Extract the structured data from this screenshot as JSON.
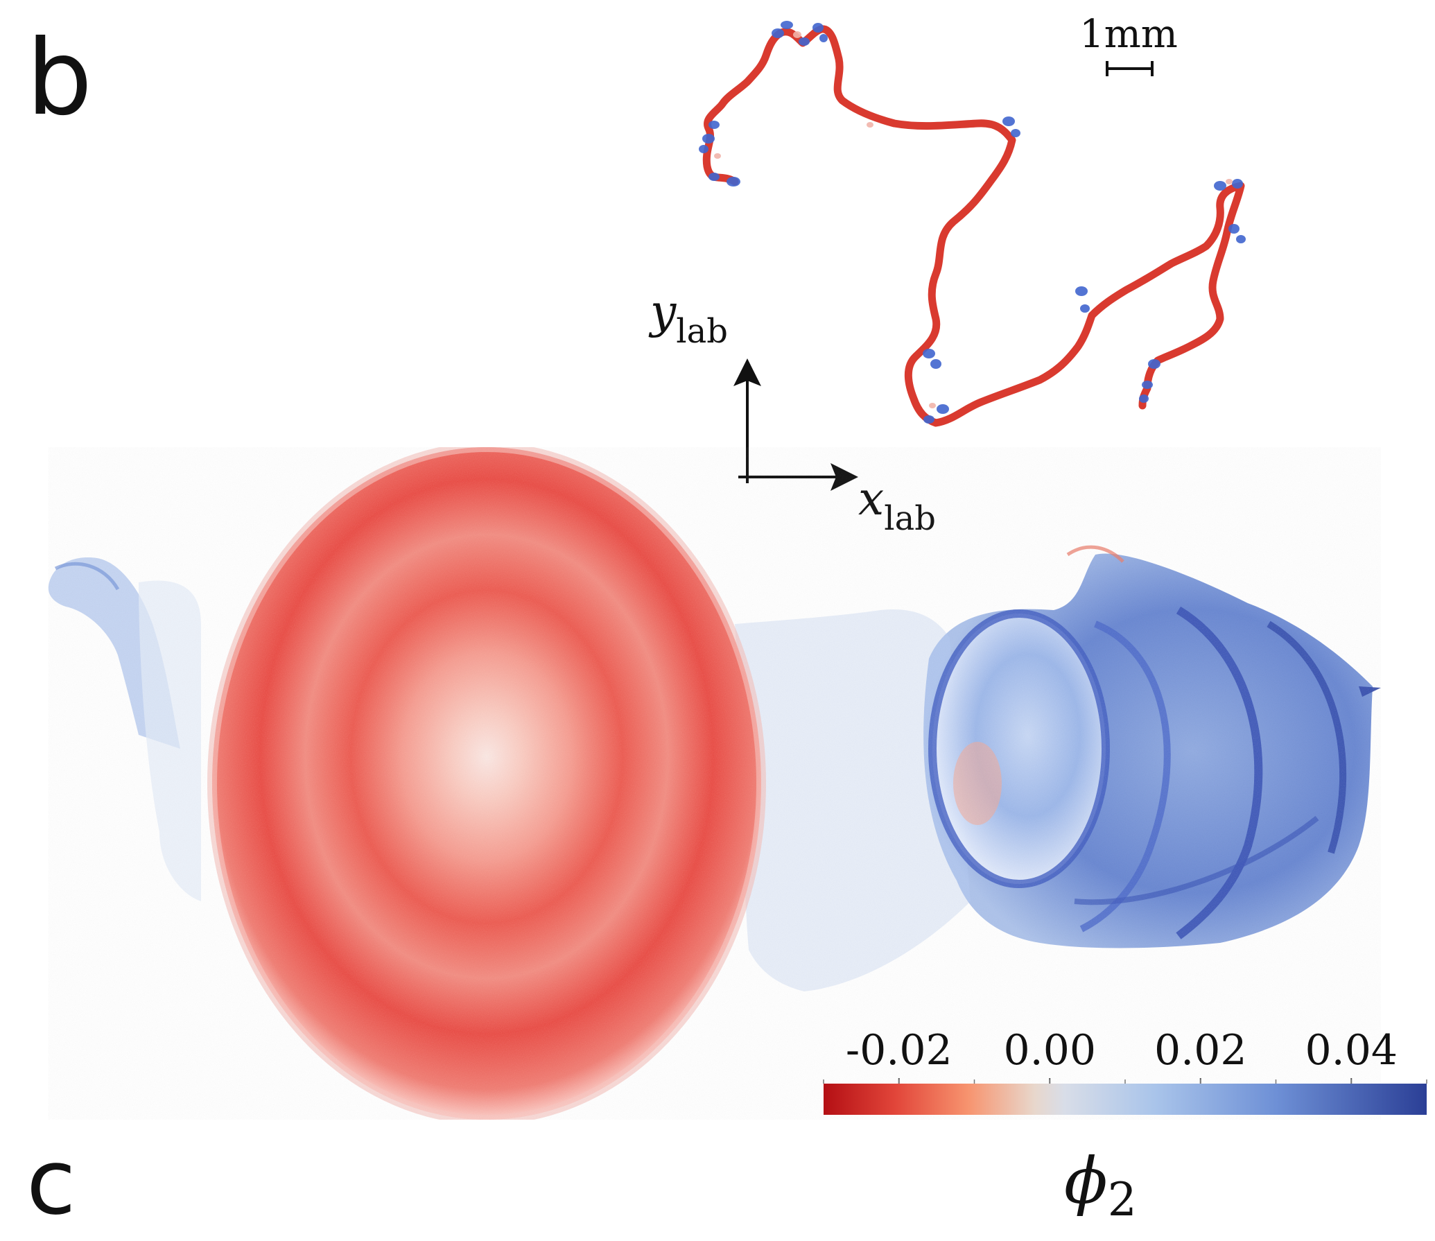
{
  "panels": {
    "top_label": "b",
    "bottom_label": "c"
  },
  "scale_bar": {
    "label": "1mm"
  },
  "axes": {
    "y_symbol": "y",
    "y_subscript": "lab",
    "x_symbol": "x",
    "x_subscript": "lab"
  },
  "colorbar": {
    "tick_labels": [
      "-0.02",
      "0.00",
      "0.02",
      "0.04"
    ],
    "ticks": [
      -0.02,
      0.0,
      0.02,
      0.04
    ],
    "range": [
      -0.03,
      0.05
    ],
    "symbol": "ϕ",
    "subscript": "2",
    "colors": {
      "low": "#b40f14",
      "mid_low": "#f28a6e",
      "mid": "#dcdcdc",
      "mid_high": "#8fb4e3",
      "high": "#2b3f96"
    }
  },
  "colors": {
    "red": "#e3453b",
    "blue": "#3d5fc4",
    "light_blue": "#9fbce6"
  }
}
